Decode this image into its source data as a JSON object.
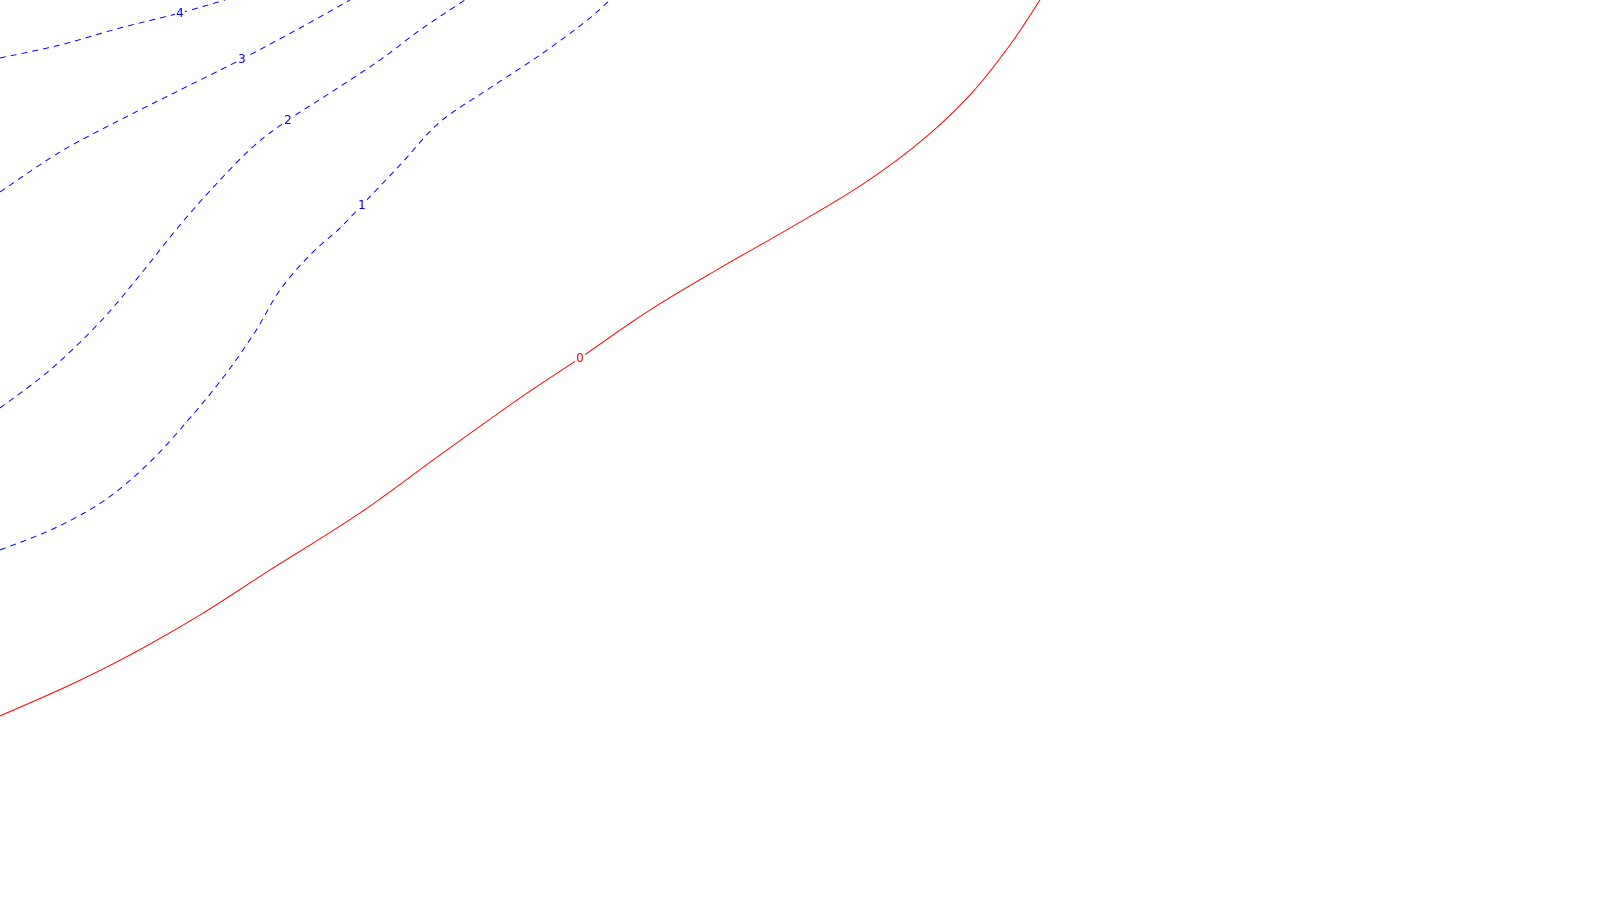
{
  "chart_data": {
    "type": "contour",
    "title": "",
    "xlabel": "",
    "ylabel": "",
    "grid": false,
    "legend": "none",
    "levels": [
      {
        "level": "0",
        "color": "#ff0000",
        "style": "solid",
        "label_at": [
          580,
          358
        ],
        "points": [
          [
            0,
            716
          ],
          [
            70,
            685
          ],
          [
            130,
            655
          ],
          [
            200,
            615
          ],
          [
            270,
            570
          ],
          [
            360,
            513
          ],
          [
            440,
            455
          ],
          [
            520,
            398
          ],
          [
            580,
            358
          ],
          [
            650,
            310
          ],
          [
            720,
            268
          ],
          [
            790,
            228
          ],
          [
            860,
            186
          ],
          [
            920,
            142
          ],
          [
            970,
            95
          ],
          [
            1010,
            45
          ],
          [
            1040,
            0
          ]
        ]
      },
      {
        "level": "1",
        "color": "#0000ff",
        "style": "dashed",
        "label_at": [
          362,
          205
        ],
        "points": [
          [
            0,
            550
          ],
          [
            55,
            528
          ],
          [
            105,
            500
          ],
          [
            150,
            462
          ],
          [
            190,
            418
          ],
          [
            225,
            375
          ],
          [
            255,
            332
          ],
          [
            280,
            290
          ],
          [
            310,
            255
          ],
          [
            340,
            228
          ],
          [
            362,
            205
          ],
          [
            400,
            165
          ],
          [
            440,
            122
          ],
          [
            490,
            88
          ],
          [
            540,
            55
          ],
          [
            585,
            22
          ],
          [
            610,
            0
          ]
        ]
      },
      {
        "level": "2",
        "color": "#0000ff",
        "style": "dashed",
        "label_at": [
          288,
          120
        ],
        "points": [
          [
            0,
            408
          ],
          [
            50,
            370
          ],
          [
            100,
            322
          ],
          [
            140,
            275
          ],
          [
            180,
            225
          ],
          [
            220,
            180
          ],
          [
            255,
            145
          ],
          [
            288,
            120
          ],
          [
            330,
            93
          ],
          [
            380,
            60
          ],
          [
            420,
            30
          ],
          [
            465,
            0
          ]
        ]
      },
      {
        "level": "3",
        "color": "#0000ff",
        "style": "dashed",
        "label_at": [
          242,
          59
        ],
        "points": [
          [
            0,
            192
          ],
          [
            60,
            152
          ],
          [
            120,
            120
          ],
          [
            180,
            90
          ],
          [
            242,
            59
          ],
          [
            300,
            28
          ],
          [
            350,
            0
          ]
        ]
      },
      {
        "level": "4",
        "color": "#0000ff",
        "style": "dashed",
        "label_at": [
          180,
          13
        ],
        "points": [
          [
            0,
            58
          ],
          [
            60,
            45
          ],
          [
            120,
            28
          ],
          [
            180,
            13
          ],
          [
            225,
            0
          ]
        ]
      }
    ]
  }
}
